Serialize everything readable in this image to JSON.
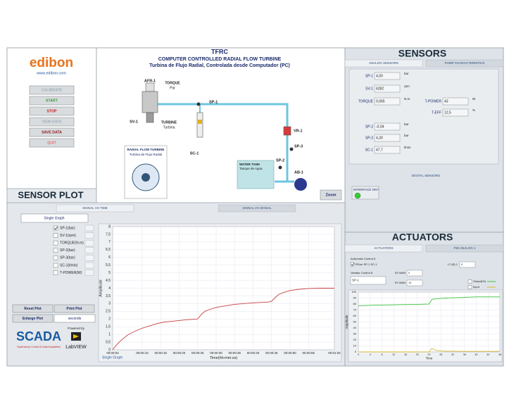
{
  "left_panel": {
    "logo": "edibon",
    "website": "www.edibon.com",
    "buttons": [
      {
        "label": "CALIBRATE",
        "color": "#9fb0b8"
      },
      {
        "label": "START",
        "color": "#3a9a3a"
      },
      {
        "label": "STOP",
        "color": "#c81e1e"
      },
      {
        "label": "VIEW DATA",
        "color": "#9fb0b8"
      },
      {
        "label": "SAVE DATA",
        "color": "#8a1a1a"
      },
      {
        "label": "QUIT",
        "color": "#e07070"
      }
    ]
  },
  "diagram": {
    "title": "TFRC",
    "subtitle": "COMPUTER CONTROLLED RADIAL FLOW TURBINE",
    "subtitle_es": "Turbina de Flujo Radial, Controlada desde Computador (PC)",
    "labels": {
      "afr1": "AFR-1",
      "torque": "TORQUE",
      "torque_es": "Par",
      "sv1": "SV-1",
      "turbine": "TURBINE",
      "turbine_es": "Turbina",
      "sp1": "SP-1",
      "sc1": "SC-1",
      "vr1": "VR-1",
      "sp3": "SP-3",
      "sp2": "SP-2",
      "ab1": "AB-1",
      "tank": "WATER TANK",
      "tank_es": "Tanque de Agua",
      "inset": "RADIAL FLOW TURBINE",
      "inset_es": "Turbina de Flujo Radial"
    },
    "zoom": "Zoom"
  },
  "sensors": {
    "title": "SENSORS",
    "tabs": [
      "ANALOG SENSORS",
      "PUMP CHARACTERISTICS"
    ],
    "analog": [
      {
        "name": "SP-1",
        "value": "4,00",
        "unit": "bar"
      },
      {
        "name": "SV-1",
        "value": "6282",
        "unit": "rpm"
      },
      {
        "name": "TORQUE",
        "value": "0,065",
        "unit": "N.m"
      },
      {
        "name": "SP-2",
        "value": "-0,04",
        "unit": "bar"
      },
      {
        "name": "SP-3",
        "value": "4,30",
        "unit": "bar"
      },
      {
        "name": "SC-1",
        "value": "47,7",
        "unit": "l/min"
      }
    ],
    "computed": [
      {
        "name": "T-POWER",
        "value": "43",
        "unit": "W"
      },
      {
        "name": "T-EFF",
        "value": "12,5",
        "unit": "%"
      }
    ],
    "digital_title": "DIGITAL SENSORS",
    "digital": [
      {
        "name": "INTERFACE ON?",
        "on": true
      }
    ]
  },
  "sensor_plot": {
    "title": "SENSOR PLOT",
    "tabs": [
      "SIGNAL VS TIME",
      "SIGNAL VS SIGNAL"
    ],
    "graph_mode": "Single Graph",
    "channels": [
      {
        "label": "SP-1(bar)",
        "checked": true
      },
      {
        "label": "SV-1(rpm)",
        "checked": false
      },
      {
        "label": "TORQUE(N.m)",
        "checked": false
      },
      {
        "label": "SP-2(bar)",
        "checked": false
      },
      {
        "label": "SP-3(bar)",
        "checked": false
      },
      {
        "label": "SC-1(l/min)",
        "checked": false
      },
      {
        "label": "T-POWER(W)",
        "checked": false
      }
    ],
    "buttons": [
      "Reset Plot",
      "Print Plot",
      "Enlarge Plot"
    ],
    "time_unit": "seconds",
    "brand": "SCADA",
    "brand_sub": "Supervisory Control & Data Acquisition",
    "powered_by": "Powered by",
    "labview": "LabVIEW",
    "chart": {
      "type": "line",
      "graph_label": "Single Graph",
      "y_label": "Amplitude",
      "x_label": "Time(hh:mm:ss)",
      "background": "#ffffff",
      "grid": true,
      "x": [
        2,
        3,
        4,
        5,
        6,
        8,
        10,
        12,
        14,
        16,
        18,
        20,
        22,
        24,
        25,
        26,
        27,
        28,
        30,
        35,
        40,
        44,
        45,
        46,
        47,
        48,
        50,
        52,
        55,
        58,
        62
      ],
      "series": [
        {
          "name": "SP-1(bar)",
          "color": "#c84040",
          "values": [
            0,
            0.3,
            0.55,
            0.75,
            0.95,
            1.2,
            1.4,
            1.55,
            1.7,
            1.8,
            1.85,
            1.9,
            1.95,
            1.98,
            2.0,
            2.3,
            2.5,
            2.6,
            2.75,
            2.95,
            3.05,
            3.1,
            3.15,
            3.4,
            3.6,
            3.7,
            3.85,
            3.92,
            3.98,
            4.0,
            4.0
          ]
        }
      ],
      "xlim": [
        2,
        62
      ],
      "xticks": [
        {
          "value": 2,
          "label": "00:00:02"
        },
        {
          "value": 10,
          "label": "00:00:10"
        },
        {
          "value": 15,
          "label": "00:00:15"
        },
        {
          "value": 20,
          "label": "00:00:20"
        },
        {
          "value": 25,
          "label": "00:00:25"
        },
        {
          "value": 30,
          "label": "00:00:30"
        },
        {
          "value": 35,
          "label": "00:00:35"
        },
        {
          "value": 40,
          "label": "00:00:40"
        },
        {
          "value": 45,
          "label": "00:00:45"
        },
        {
          "value": 50,
          "label": "00:00:50"
        },
        {
          "value": 55,
          "label": "00:00:55"
        },
        {
          "value": 62,
          "label": "00:01:02"
        }
      ],
      "ylim": [
        0,
        8
      ],
      "yticks": [
        0,
        {
          "value": 0.5,
          "label": "0,5"
        },
        1,
        {
          "value": 1.5,
          "label": "1,5"
        },
        2,
        {
          "value": 2.5,
          "label": "2,5"
        },
        3,
        {
          "value": 3.5,
          "label": "3,5"
        },
        4,
        {
          "value": 4.5,
          "label": "4,5"
        },
        5,
        {
          "value": 5.5,
          "label": "5,5"
        },
        6,
        {
          "value": 6.5,
          "label": "6,5"
        },
        7,
        {
          "value": 7.5,
          "label": "7,5"
        },
        8
      ]
    }
  },
  "actuators": {
    "title": "ACTUATORS",
    "tabs": [
      "ACTUATORS",
      "PID ANALOG 1"
    ],
    "automatic_control": "Automatic Control A",
    "checkbox": {
      "label": "RDon SP-1 SC-1",
      "checked": true
    },
    "variator_control": "Variator Control A",
    "variator_value": "SP-1",
    "manual": [
      {
        "label": "SV MAN",
        "value": "0"
      },
      {
        "label": "SV MAN",
        "value": "10"
      }
    ],
    "pid_field": {
      "label": "LT (B) 1",
      "value": "0"
    },
    "chart": {
      "type": "line",
      "y_label": "Amplitude",
      "x_label": "Time",
      "background": "#ffffff",
      "grid": true,
      "x": [
        0,
        5,
        10,
        15,
        20,
        24,
        25,
        26,
        27,
        28,
        30,
        35,
        40,
        48
      ],
      "series": [
        {
          "name": "Output(%)",
          "color": "#3cc43c",
          "values": [
            77,
            78,
            78.5,
            79,
            79.5,
            80,
            88,
            88.5,
            89,
            89.5,
            90,
            91,
            92,
            92
          ]
        },
        {
          "name": "Input",
          "color": "#d8b830",
          "values": [
            0,
            0,
            0,
            0,
            0,
            0,
            6,
            3,
            2,
            1.5,
            1.2,
            1,
            1,
            1
          ]
        }
      ],
      "xlim": [
        0,
        48
      ],
      "xticks": [
        0,
        4,
        8,
        12,
        16,
        20,
        24,
        28,
        32,
        36,
        40,
        44,
        48
      ],
      "ylim": [
        0,
        100
      ],
      "yticks": [
        0,
        10,
        20,
        30,
        40,
        50,
        60,
        70,
        80,
        90,
        100
      ]
    }
  }
}
